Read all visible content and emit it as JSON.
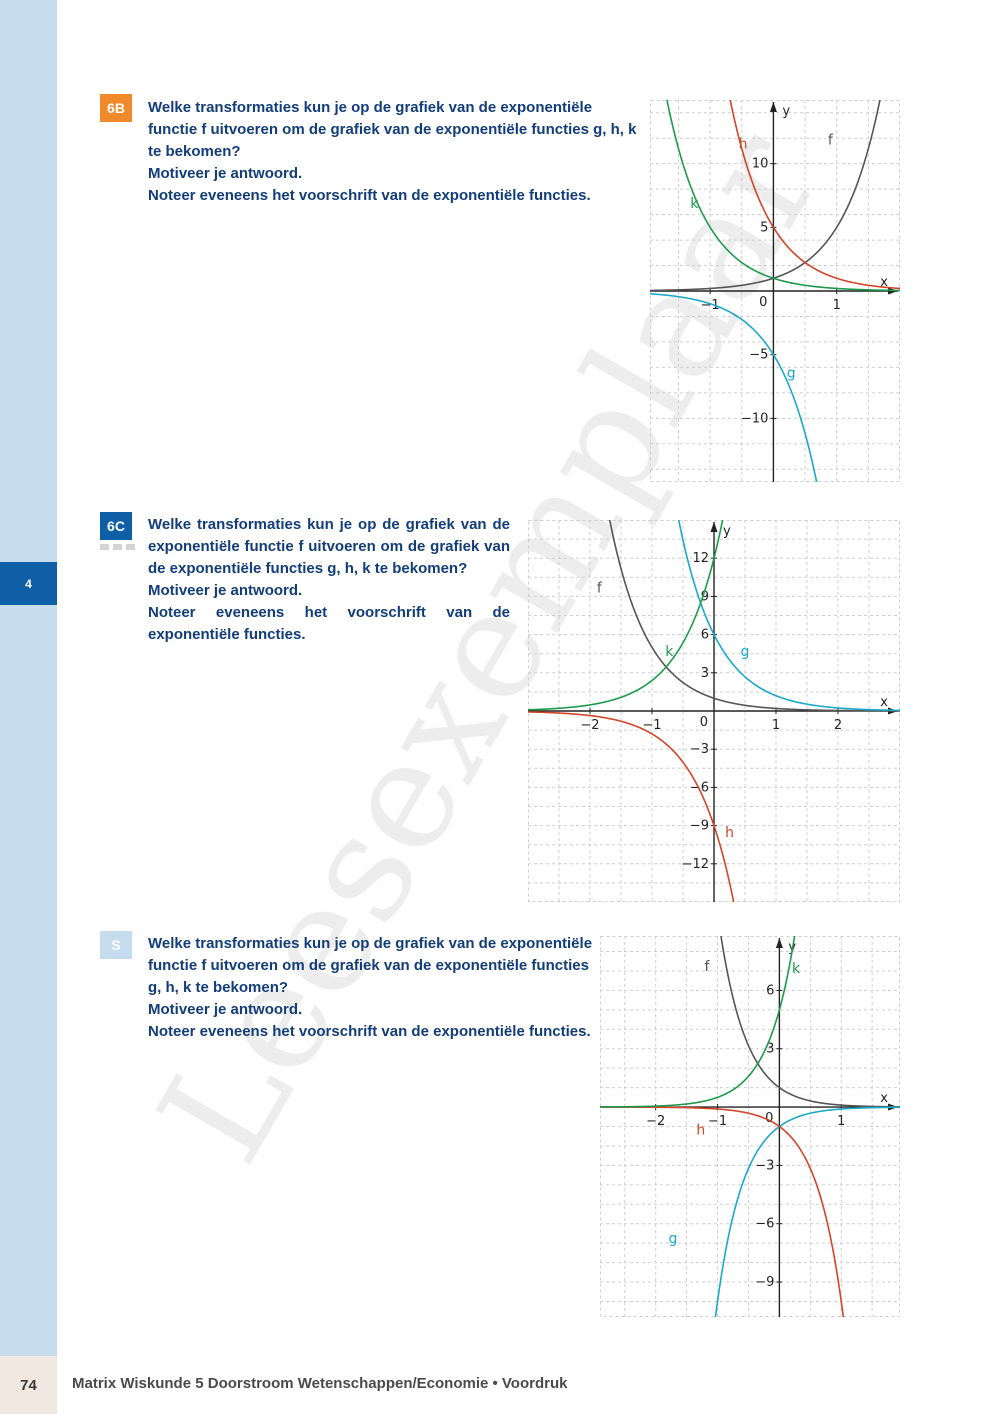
{
  "page": {
    "chapter_number": "4",
    "page_number": "74",
    "footer": "Matrix Wiskunde 5 Doorstroom Wetenschappen/Economie • Voordruk",
    "watermark": "Leesexemplaar"
  },
  "colors": {
    "f": "#555555",
    "g": "#1aa9c9",
    "h": "#d2452a",
    "k": "#1e9a4c",
    "badge_6b": "#f08a2a",
    "badge_6c": "#0e5fa6",
    "badge_s": "#c6dbee",
    "text": "#123d7a"
  },
  "exercises": [
    {
      "badge": "6B",
      "lines": [
        "Welke transformaties kun je op de grafiek van de exponentiële functie f uitvoeren om de grafiek van de exponentiële functies g, h, k te bekomen?",
        "Motiveer je antwoord.",
        "Noteer eveneens het voorschrift van de exponentiële functies."
      ]
    },
    {
      "badge": "6C",
      "lines": [
        "Welke transformaties kun je op de grafiek van de exponentiële functie f uitvoeren om de grafiek van de exponentiële functies g, h, k te bekomen?",
        "Motiveer je antwoord.",
        "Noteer eveneens het voorschrift van de exponentiële functies."
      ]
    },
    {
      "badge": "S",
      "lines": [
        "Welke transformaties kun je op de grafiek van de exponentiële functie f uitvoeren om de grafiek van de exponentiële functies g, h, k te bekomen?",
        "Motiveer je antwoord.",
        "Noteer eveneens het voorschrift van de exponentiële functies."
      ]
    }
  ],
  "chart_data": [
    {
      "type": "line",
      "xlabel": "x",
      "ylabel": "y",
      "xlim": [
        -1.95,
        2.0
      ],
      "ylim": [
        -15,
        15
      ],
      "grid_x": [
        -1.5,
        -1,
        -0.5,
        0,
        0.5,
        1,
        1.5
      ],
      "grid_y": [
        -14,
        -12,
        -10,
        -8,
        -6,
        -4,
        -2,
        0,
        2,
        4,
        6,
        8,
        10,
        12,
        14
      ],
      "x_ticks": [
        {
          "v": -1,
          "label": "−1"
        },
        {
          "v": 1,
          "label": "1"
        }
      ],
      "y_ticks": [
        {
          "v": 10,
          "label": "10"
        },
        {
          "v": 5,
          "label": "5"
        },
        {
          "v": -5,
          "label": "−5"
        },
        {
          "v": -10,
          "label": "−10"
        }
      ],
      "origin_label": "0",
      "series": [
        {
          "name": "f",
          "a": 1,
          "base": 5,
          "shift": 0
        },
        {
          "name": "g",
          "a": -5,
          "base": 5,
          "shift": 0
        },
        {
          "name": "h",
          "a": 5,
          "base": 0.2,
          "shift": 0
        },
        {
          "name": "k",
          "a": 1,
          "base": 0.2,
          "shift": 0
        }
      ],
      "labels": [
        {
          "name": "f",
          "x": 0.9,
          "y": 11.5
        },
        {
          "name": "g",
          "x": 0.28,
          "y": -6.8
        },
        {
          "name": "h",
          "x": -0.48,
          "y": 11.2
        },
        {
          "name": "k",
          "x": -1.25,
          "y": 6.5
        }
      ]
    },
    {
      "type": "line",
      "xlabel": "x",
      "ylabel": "y",
      "xlim": [
        -3,
        3
      ],
      "ylim": [
        -15,
        15
      ],
      "grid_x": [
        -2.5,
        -2,
        -1.5,
        -1,
        -0.5,
        0,
        0.5,
        1,
        1.5,
        2,
        2.5
      ],
      "grid_y": [
        -15,
        -13.5,
        -12,
        -10.5,
        -9,
        -7.5,
        -6,
        -4.5,
        -3,
        -1.5,
        0,
        1.5,
        3,
        4.5,
        6,
        7.5,
        9,
        10.5,
        12,
        13.5,
        15
      ],
      "x_ticks": [
        {
          "v": -2,
          "label": "−2"
        },
        {
          "v": -1,
          "label": "−1"
        },
        {
          "v": 1,
          "label": "1"
        },
        {
          "v": 2,
          "label": "2"
        }
      ],
      "y_ticks": [
        {
          "v": 12,
          "label": "12"
        },
        {
          "v": 9,
          "label": "9"
        },
        {
          "v": 6,
          "label": "6"
        },
        {
          "v": 3,
          "label": "3"
        },
        {
          "v": -3,
          "label": "−3"
        },
        {
          "v": -6,
          "label": "−6"
        },
        {
          "v": -9,
          "label": "−9"
        },
        {
          "v": -12,
          "label": "−12"
        }
      ],
      "origin_label": "0",
      "series": [
        {
          "name": "f",
          "a": 1,
          "base": 0.2,
          "shift": 0
        },
        {
          "name": "g",
          "a": 6,
          "base": 0.2,
          "shift": 0
        },
        {
          "name": "h",
          "a": -9,
          "base": 5,
          "shift": 0
        },
        {
          "name": "k",
          "a": 12,
          "base": 5,
          "shift": 0
        }
      ],
      "labels": [
        {
          "name": "f",
          "x": -1.85,
          "y": 9.3
        },
        {
          "name": "g",
          "x": 0.5,
          "y": 4.3
        },
        {
          "name": "h",
          "x": 0.25,
          "y": -9.9
        },
        {
          "name": "k",
          "x": -0.72,
          "y": 4.3
        }
      ]
    },
    {
      "type": "line",
      "xlabel": "x",
      "ylabel": "y",
      "xlim": [
        -2.9,
        1.95
      ],
      "ylim": [
        -10.8,
        8.8
      ],
      "grid_x": [
        -2.5,
        -2,
        -1.5,
        -1,
        -0.5,
        0,
        0.5,
        1,
        1.5
      ],
      "grid_y": [
        -10,
        -9,
        -8,
        -7,
        -6,
        -5,
        -4,
        -3,
        -2,
        -1,
        0,
        1,
        2,
        3,
        4,
        5,
        6,
        7,
        8
      ],
      "x_ticks": [
        {
          "v": -2,
          "label": "−2"
        },
        {
          "v": -1,
          "label": "−1"
        },
        {
          "v": 1,
          "label": "1"
        }
      ],
      "y_ticks": [
        {
          "v": 6,
          "label": "6"
        },
        {
          "v": 3,
          "label": "3"
        },
        {
          "v": -3,
          "label": "−3"
        },
        {
          "v": -6,
          "label": "−6"
        },
        {
          "v": -9,
          "label": "−9"
        }
      ],
      "origin_label": "0",
      "series": [
        {
          "name": "f",
          "a": 1,
          "base": 0.1,
          "shift": 0
        },
        {
          "name": "g",
          "a": -1,
          "base": 0.1,
          "shift": 0
        },
        {
          "name": "h",
          "a": -1,
          "base": 10,
          "shift": 0
        },
        {
          "name": "k",
          "a": 5,
          "base": 10,
          "shift": 0
        }
      ],
      "labels": [
        {
          "name": "f",
          "x": -1.17,
          "y": 7.0
        },
        {
          "name": "g",
          "x": -1.72,
          "y": -7.0
        },
        {
          "name": "h",
          "x": -1.27,
          "y": -1.4
        },
        {
          "name": "k",
          "x": 0.27,
          "y": 6.9
        }
      ]
    }
  ]
}
